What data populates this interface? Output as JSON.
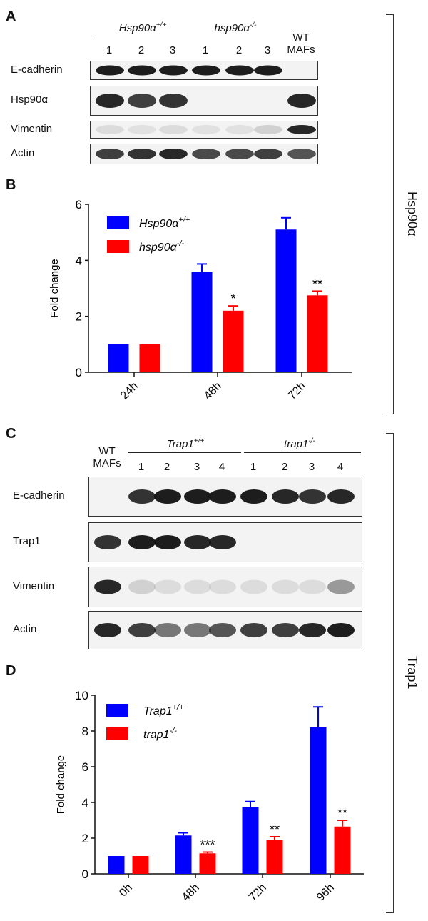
{
  "panelA": {
    "letter": "A",
    "group1": "Hsp90α",
    "group1_sup": "+/+",
    "group2": "hsp90α",
    "group2_sup": "-/-",
    "lanes": [
      "1",
      "2",
      "3",
      "1",
      "2",
      "3"
    ],
    "wt_line1": "WT",
    "wt_line2": "MAFs",
    "rows": [
      {
        "label": "E-cadherin",
        "bands": [
          0.95,
          0.95,
          0.95,
          0.95,
          0.95,
          0.95,
          0
        ]
      },
      {
        "label": "Hsp90α",
        "bands": [
          0.9,
          0.8,
          0.85,
          0,
          0,
          0,
          0.9
        ]
      },
      {
        "label": "Vimentin",
        "bands": [
          0.1,
          0.08,
          0.1,
          0.08,
          0.08,
          0.15,
          0.9
        ]
      },
      {
        "label": "Actin",
        "bands": [
          0.8,
          0.85,
          0.9,
          0.75,
          0.75,
          0.8,
          0.7
        ]
      }
    ]
  },
  "panelC": {
    "letter": "C",
    "group1": "Trap1",
    "group1_sup": "+/+",
    "group2": "trap1",
    "group2_sup": "-/-",
    "lanes": [
      "1",
      "2",
      "3",
      "4",
      "1",
      "2",
      "3",
      "4"
    ],
    "wt_line1": "WT",
    "wt_line2": "MAFs",
    "rows": [
      {
        "label": "E-cadherin",
        "bands": [
          0,
          0.85,
          0.95,
          0.95,
          0.95,
          0.95,
          0.9,
          0.85,
          0.9
        ]
      },
      {
        "label": "Trap1",
        "bands": [
          0.85,
          0.95,
          0.95,
          0.9,
          0.9,
          0,
          0,
          0,
          0
        ]
      },
      {
        "label": "Vimentin",
        "bands": [
          0.9,
          0.15,
          0.1,
          0.1,
          0.1,
          0.1,
          0.1,
          0.1,
          0.4
        ]
      },
      {
        "label": "Actin",
        "bands": [
          0.9,
          0.8,
          0.55,
          0.55,
          0.7,
          0.8,
          0.8,
          0.9,
          0.95
        ]
      }
    ]
  },
  "side_labels": {
    "top": "Hsp90α",
    "bottom": "Trap1"
  },
  "chart_data": [
    {
      "panel": "B",
      "type": "bar",
      "ylabel": "Fold change",
      "ylim": [
        0,
        6
      ],
      "yticks": [
        "0",
        "2",
        "4",
        "6"
      ],
      "categories": [
        "24h",
        "48h",
        "72h"
      ],
      "legend_position": "top-left",
      "series": [
        {
          "name": "Hsp90α",
          "sup": "+/+",
          "color": "#0000ff",
          "values": [
            1,
            3.6,
            5.1
          ],
          "errors": [
            0,
            0.27,
            0.42
          ]
        },
        {
          "name": "hsp90α",
          "sup": "-/-",
          "color": "#ff0000",
          "values": [
            1,
            2.2,
            2.75
          ],
          "errors": [
            0,
            0.17,
            0.15
          ]
        }
      ],
      "annotations": [
        "",
        "*",
        "**"
      ]
    },
    {
      "panel": "D",
      "type": "bar",
      "ylabel": "Fold change",
      "ylim": [
        0,
        10
      ],
      "yticks": [
        "0",
        "2",
        "4",
        "6",
        "8",
        "10"
      ],
      "categories": [
        "0h",
        "48h",
        "72h",
        "96h"
      ],
      "legend_position": "top-left",
      "series": [
        {
          "name": "Trap1",
          "sup": "+/+",
          "color": "#0000ff",
          "values": [
            1,
            2.15,
            3.75,
            8.2
          ],
          "errors": [
            0,
            0.15,
            0.3,
            1.15
          ]
        },
        {
          "name": "trap1",
          "sup": "-/-",
          "color": "#ff0000",
          "values": [
            1,
            1.15,
            1.9,
            2.65
          ],
          "errors": [
            0,
            0.07,
            0.18,
            0.35
          ]
        }
      ],
      "annotations": [
        "",
        "***",
        "**",
        "**"
      ]
    }
  ]
}
